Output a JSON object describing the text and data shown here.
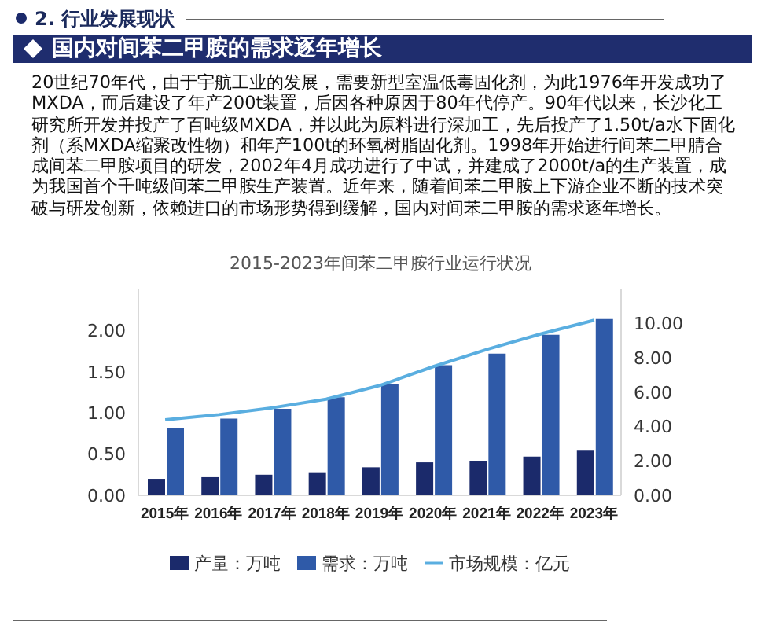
{
  "chart_data": {
    "type": "bar",
    "title": "2015-2023年间苯二甲胺行业运行状况",
    "subtitle": "国内对间苯二甲胺的需求逐年增长",
    "annotations": [
      "2. 行业发展现状",
      "20世纪70年代，由于宇航工业的发展，需要新型室温低毒固化剂，为此1976年开发成功了MXDA，而后建设了年产200t装置，后因各种原因于80年代停产。90年代以来，长沙化工研究所开发并投产了百吨级MXDA，并以此为原料进行深加工，先后投产了1.50t/a水下固化剂（系MXDA缩聚改性物）和年产100t的环氧树脂固化剂。1998年开始进行间苯二甲腈合成间苯二甲胺项目的研发，2002年4月成功进行了中试，并建成了2000t/a的生产装置，成为我国首个千吨级间苯二甲胺生产装置。近年来，随着间苯二甲胺上下游企业不断的技术突破与研发创新，依赖进口的市场形势得到缓解，国内对间苯二甲胺的需求逐年增长。"
    ],
    "categories": [
      "2015年",
      "2016年",
      "2017年",
      "2018年",
      "2019年",
      "2020年",
      "2021年",
      "2022年",
      "2023年"
    ],
    "series": [
      {
        "name": "产量：万吨",
        "color": "#1b2a6b",
        "values": [
          0.2,
          0.22,
          0.25,
          0.28,
          0.34,
          0.4,
          0.42,
          0.47,
          0.55
        ]
      },
      {
        "name": "需求：万吨",
        "color": "#2f5aa8",
        "values": [
          0.82,
          0.93,
          1.05,
          1.19,
          1.35,
          1.58,
          1.72,
          1.95,
          2.14
        ]
      },
      {
        "name": "市场规模：亿元",
        "type": "line",
        "axis": "y2",
        "color": "#5aaee0",
        "values": [
          4.4,
          4.7,
          5.1,
          5.6,
          6.4,
          7.5,
          8.5,
          9.4,
          10.2
        ]
      }
    ],
    "ylim": [
      0,
      2.5
    ],
    "yticks": [
      {
        "value": 0,
        "label": "0.00"
      },
      {
        "value": 0.5,
        "label": "0.50"
      },
      {
        "value": 1,
        "label": "1.00"
      },
      {
        "value": 1.5,
        "label": "1.50"
      },
      {
        "value": 2,
        "label": "2.00"
      }
    ],
    "y2lim": [
      0,
      12
    ],
    "y2ticks": [
      {
        "value": 0,
        "label": "0.00"
      },
      {
        "value": 2,
        "label": "2.00"
      },
      {
        "value": 4,
        "label": "4.00"
      },
      {
        "value": 6,
        "label": "6.00"
      },
      {
        "value": 8,
        "label": "8.00"
      },
      {
        "value": 10,
        "label": "10.00"
      }
    ],
    "legend": "bottom"
  }
}
